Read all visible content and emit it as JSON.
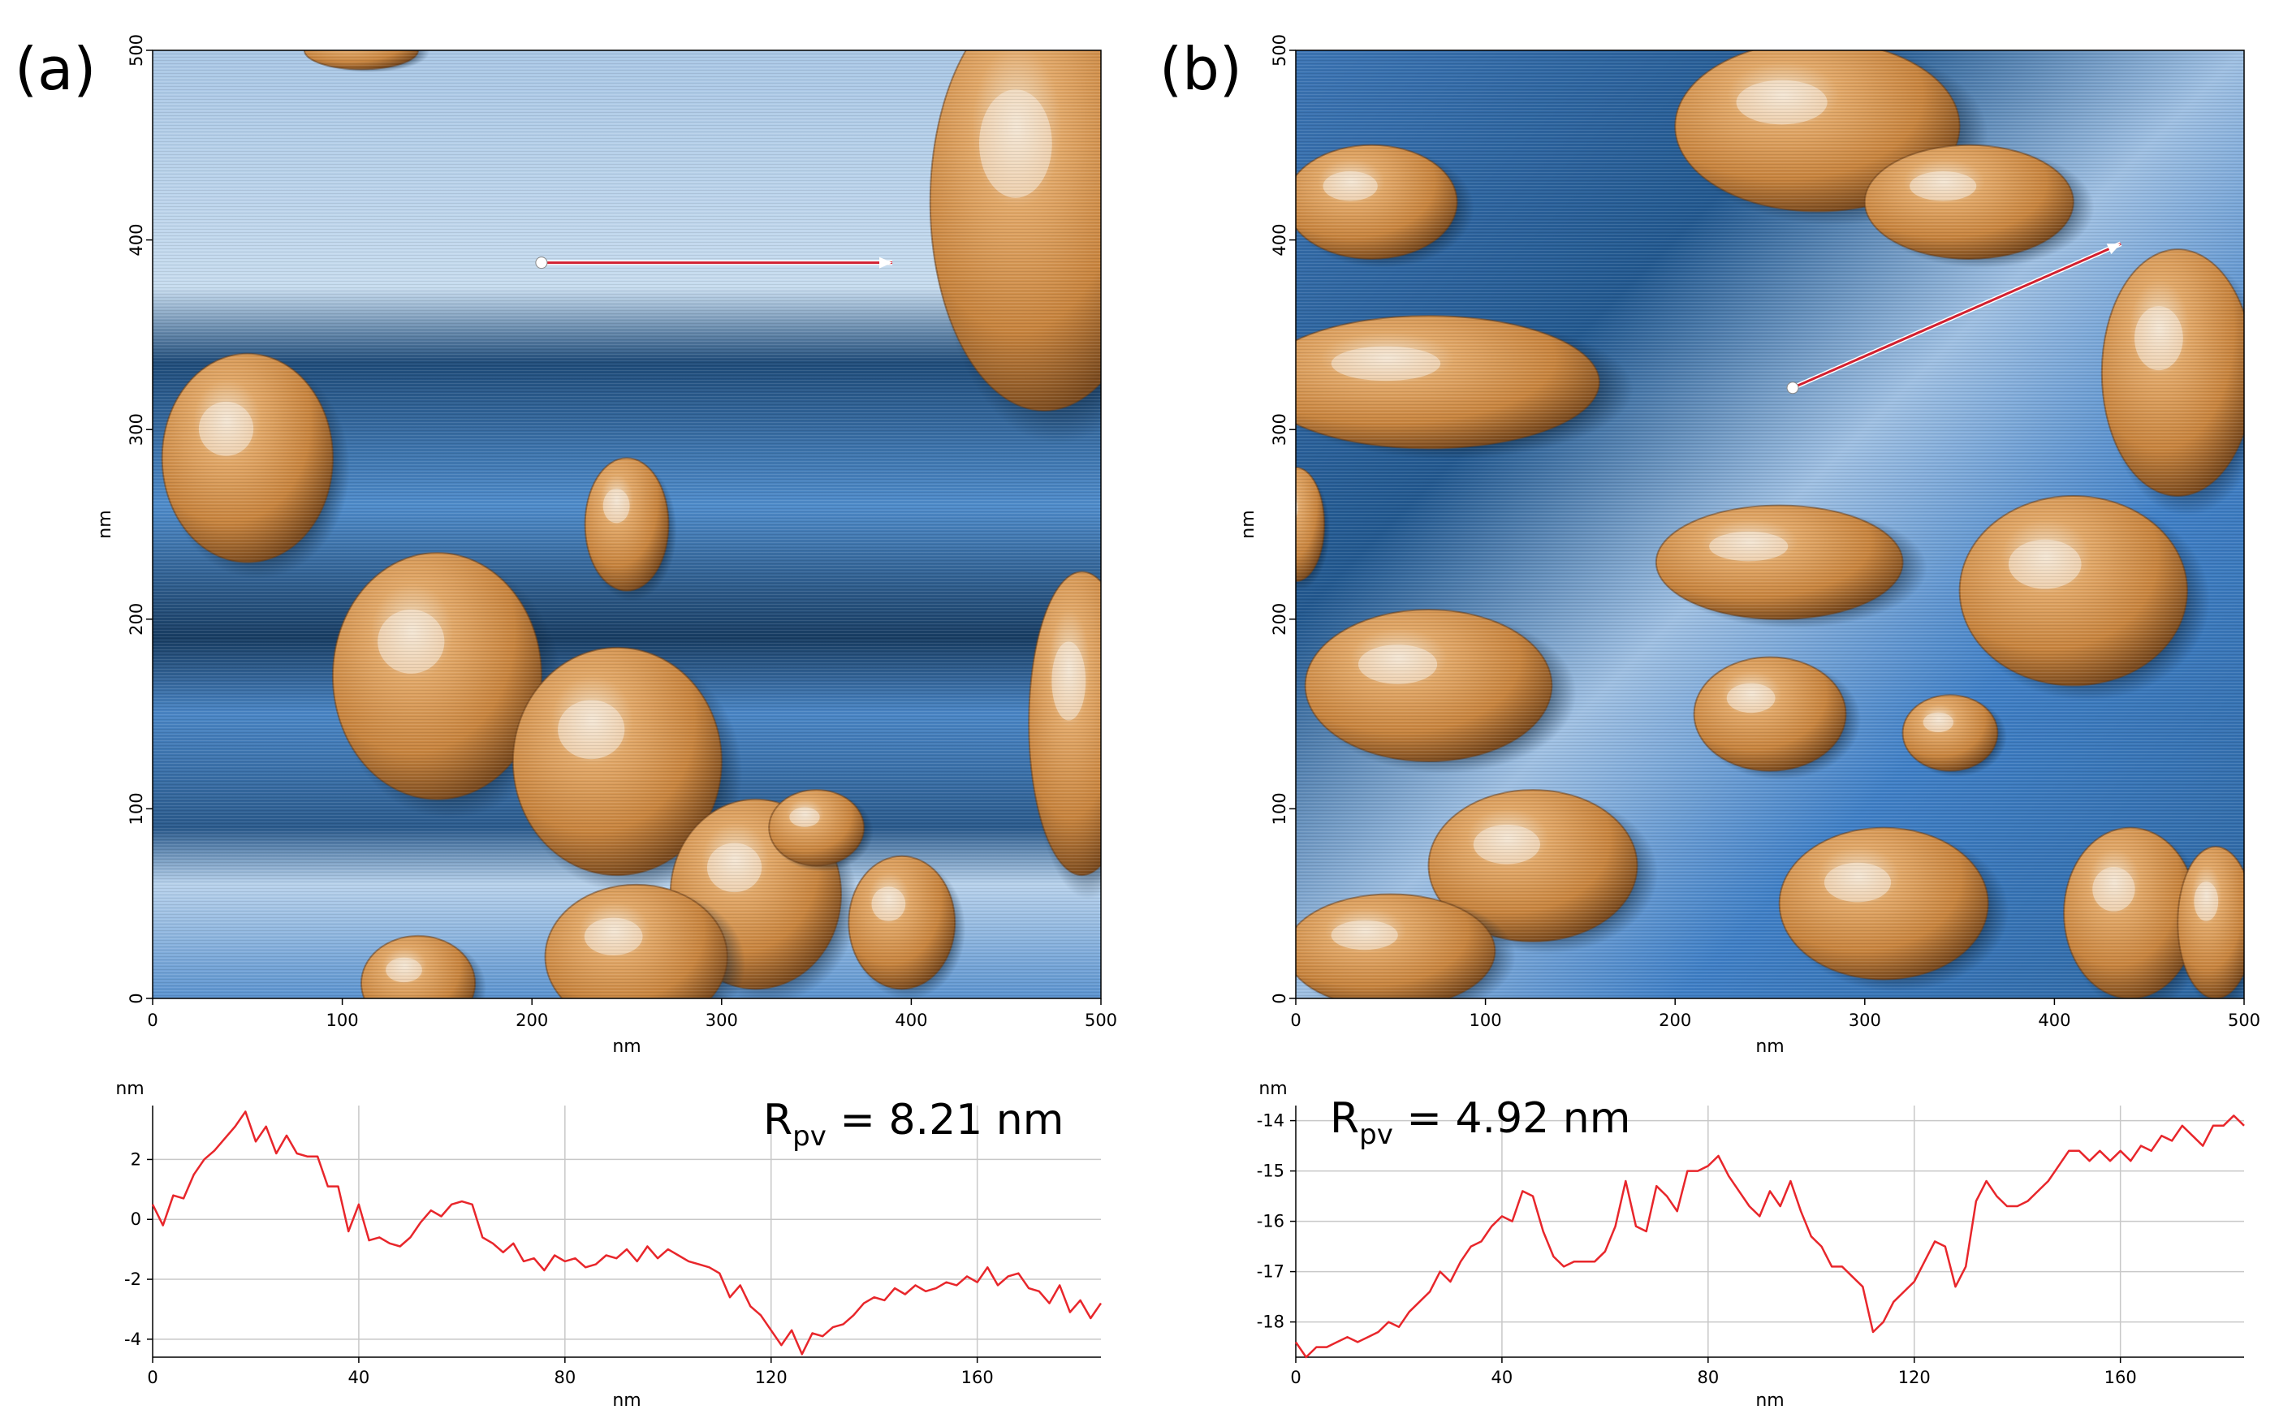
{
  "chart_data": [
    {
      "type": "heatmap",
      "panel_label": "(a)",
      "xlabel": "nm",
      "ylabel": "nm",
      "xlim": [
        0,
        500
      ],
      "ylim": [
        0,
        500
      ],
      "xticks": [
        0,
        100,
        200,
        300,
        400,
        500
      ],
      "yticks": [
        0,
        100,
        200,
        300,
        400,
        500
      ],
      "colors": {
        "substrate": "#3f7fc6",
        "grain": "#d48f45",
        "shadow": "#0d2236",
        "highlight": "#dce9f5"
      },
      "grains": [
        {
          "x": 50,
          "y": 285,
          "rx": 45,
          "ry": 55
        },
        {
          "x": 150,
          "y": 170,
          "rx": 55,
          "ry": 65
        },
        {
          "x": 245,
          "y": 125,
          "rx": 55,
          "ry": 60
        },
        {
          "x": 250,
          "y": 250,
          "rx": 22,
          "ry": 35
        },
        {
          "x": 318,
          "y": 55,
          "rx": 45,
          "ry": 50
        },
        {
          "x": 395,
          "y": 40,
          "rx": 28,
          "ry": 35
        },
        {
          "x": 255,
          "y": 22,
          "rx": 48,
          "ry": 38
        },
        {
          "x": 140,
          "y": 8,
          "rx": 30,
          "ry": 25
        },
        {
          "x": 470,
          "y": 420,
          "rx": 60,
          "ry": 110
        },
        {
          "x": 490,
          "y": 145,
          "rx": 28,
          "ry": 80
        },
        {
          "x": 350,
          "y": 90,
          "rx": 25,
          "ry": 20
        },
        {
          "x": 110,
          "y": 500,
          "rx": 30,
          "ry": 10
        }
      ],
      "line_profile": {
        "x1": 205,
        "y1": 388,
        "x2": 390,
        "y2": 388,
        "color": "#d22030"
      }
    },
    {
      "type": "heatmap",
      "panel_label": "(b)",
      "xlabel": "nm",
      "ylabel": "nm",
      "xlim": [
        0,
        500
      ],
      "ylim": [
        0,
        500
      ],
      "xticks": [
        0,
        100,
        200,
        300,
        400,
        500
      ],
      "yticks": [
        0,
        100,
        200,
        300,
        400,
        500
      ],
      "colors": {
        "substrate": "#3f7fc6",
        "grain": "#d48f45",
        "shadow": "#0d2236",
        "highlight": "#dce9f5"
      },
      "grains": [
        {
          "x": 275,
          "y": 460,
          "rx": 75,
          "ry": 45
        },
        {
          "x": 355,
          "y": 420,
          "rx": 55,
          "ry": 30
        },
        {
          "x": 465,
          "y": 330,
          "rx": 40,
          "ry": 65
        },
        {
          "x": 70,
          "y": 325,
          "rx": 90,
          "ry": 35
        },
        {
          "x": 40,
          "y": 420,
          "rx": 45,
          "ry": 30
        },
        {
          "x": 255,
          "y": 230,
          "rx": 65,
          "ry": 30
        },
        {
          "x": 410,
          "y": 215,
          "rx": 60,
          "ry": 50
        },
        {
          "x": 70,
          "y": 165,
          "rx": 65,
          "ry": 40
        },
        {
          "x": 250,
          "y": 150,
          "rx": 40,
          "ry": 30
        },
        {
          "x": 345,
          "y": 140,
          "rx": 25,
          "ry": 20
        },
        {
          "x": 125,
          "y": 70,
          "rx": 55,
          "ry": 40
        },
        {
          "x": 50,
          "y": 25,
          "rx": 55,
          "ry": 30
        },
        {
          "x": 310,
          "y": 50,
          "rx": 55,
          "ry": 40
        },
        {
          "x": 440,
          "y": 45,
          "rx": 35,
          "ry": 45
        },
        {
          "x": 0,
          "y": 250,
          "rx": 15,
          "ry": 30
        },
        {
          "x": 485,
          "y": 40,
          "rx": 20,
          "ry": 40
        }
      ],
      "line_profile": {
        "x1": 262,
        "y1": 322,
        "x2": 435,
        "y2": 398,
        "color": "#d22030"
      }
    },
    {
      "type": "line",
      "panel": "(a)",
      "ylabel": "nm",
      "xlabel": "nm",
      "xlim": [
        0,
        184
      ],
      "ylim": [
        -4.6,
        3.8
      ],
      "xticks": [
        0,
        40,
        80,
        120,
        160
      ],
      "yticks": [
        2,
        0,
        -2,
        -4
      ],
      "grid": true,
      "annotation": {
        "main": "R",
        "sub": "pv",
        "value": " = 8.21 nm"
      },
      "series": [
        {
          "color": "#e8262b",
          "x": [
            0,
            2,
            4,
            6,
            8,
            10,
            12,
            14,
            16,
            18,
            20,
            22,
            24,
            26,
            28,
            30,
            32,
            34,
            36,
            38,
            40,
            42,
            44,
            46,
            48,
            50,
            52,
            54,
            56,
            58,
            60,
            62,
            64,
            66,
            68,
            70,
            72,
            74,
            76,
            78,
            80,
            82,
            84,
            86,
            88,
            90,
            92,
            94,
            96,
            98,
            100,
            102,
            104,
            106,
            108,
            110,
            112,
            114,
            116,
            118,
            120,
            122,
            124,
            126,
            128,
            130,
            132,
            134,
            136,
            138,
            140,
            142,
            144,
            146,
            148,
            150,
            152,
            154,
            156,
            158,
            160,
            162,
            164,
            166,
            168,
            170,
            172,
            174,
            176,
            178,
            180,
            182,
            184
          ],
          "values": [
            0.5,
            -0.2,
            0.8,
            0.7,
            1.5,
            2.0,
            2.3,
            2.7,
            3.1,
            3.6,
            2.6,
            3.1,
            2.2,
            2.8,
            2.2,
            2.1,
            2.1,
            1.1,
            1.1,
            -0.4,
            0.5,
            -0.7,
            -0.6,
            -0.8,
            -0.9,
            -0.6,
            -0.1,
            0.3,
            0.1,
            0.5,
            0.6,
            0.5,
            -0.6,
            -0.8,
            -1.1,
            -0.8,
            -1.4,
            -1.3,
            -1.7,
            -1.2,
            -1.4,
            -1.3,
            -1.6,
            -1.5,
            -1.2,
            -1.3,
            -1.0,
            -1.4,
            -0.9,
            -1.3,
            -1.0,
            -1.2,
            -1.4,
            -1.5,
            -1.6,
            -1.8,
            -2.6,
            -2.2,
            -2.9,
            -3.2,
            -3.7,
            -4.2,
            -3.7,
            -4.5,
            -3.8,
            -3.9,
            -3.6,
            -3.5,
            -3.2,
            -2.8,
            -2.6,
            -2.7,
            -2.3,
            -2.5,
            -2.2,
            -2.4,
            -2.3,
            -2.1,
            -2.2,
            -1.9,
            -2.1,
            -1.6,
            -2.2,
            -1.9,
            -1.8,
            -2.3,
            -2.4,
            -2.8,
            -2.2,
            -3.1,
            -2.7,
            -3.3,
            -2.8
          ]
        }
      ]
    },
    {
      "type": "line",
      "panel": "(b)",
      "ylabel": "nm",
      "xlabel": "nm",
      "xlim": [
        0,
        184
      ],
      "ylim": [
        -18.7,
        -13.7
      ],
      "xticks": [
        0,
        40,
        80,
        120,
        160
      ],
      "yticks": [
        -14,
        -15,
        -16,
        -17,
        -18
      ],
      "grid": true,
      "annotation": {
        "main": "R",
        "sub": "pv",
        "value": " = 4.92 nm"
      },
      "series": [
        {
          "color": "#e8262b",
          "x": [
            0,
            2,
            4,
            6,
            8,
            10,
            12,
            14,
            16,
            18,
            20,
            22,
            24,
            26,
            28,
            30,
            32,
            34,
            36,
            38,
            40,
            42,
            44,
            46,
            48,
            50,
            52,
            54,
            56,
            58,
            60,
            62,
            64,
            66,
            68,
            70,
            72,
            74,
            76,
            78,
            80,
            82,
            84,
            86,
            88,
            90,
            92,
            94,
            96,
            98,
            100,
            102,
            104,
            106,
            108,
            110,
            112,
            114,
            116,
            118,
            120,
            122,
            124,
            126,
            128,
            130,
            132,
            134,
            136,
            138,
            140,
            142,
            144,
            146,
            148,
            150,
            152,
            154,
            156,
            158,
            160,
            162,
            164,
            166,
            168,
            170,
            172,
            174,
            176,
            178,
            180,
            182,
            184
          ],
          "values": [
            -18.4,
            -18.7,
            -18.5,
            -18.5,
            -18.4,
            -18.3,
            -18.4,
            -18.3,
            -18.2,
            -18.0,
            -18.1,
            -17.8,
            -17.6,
            -17.4,
            -17.0,
            -17.2,
            -16.8,
            -16.5,
            -16.4,
            -16.1,
            -15.9,
            -16.0,
            -15.4,
            -15.5,
            -16.2,
            -16.7,
            -16.9,
            -16.8,
            -16.8,
            -16.8,
            -16.6,
            -16.1,
            -15.2,
            -16.1,
            -16.2,
            -15.3,
            -15.5,
            -15.8,
            -15.0,
            -15.0,
            -14.9,
            -14.7,
            -15.1,
            -15.4,
            -15.7,
            -15.9,
            -15.4,
            -15.7,
            -15.2,
            -15.8,
            -16.3,
            -16.5,
            -16.9,
            -16.9,
            -17.1,
            -17.3,
            -18.2,
            -18.0,
            -17.6,
            -17.4,
            -17.2,
            -16.8,
            -16.4,
            -16.5,
            -17.3,
            -16.9,
            -15.6,
            -15.2,
            -15.5,
            -15.7,
            -15.7,
            -15.6,
            -15.4,
            -15.2,
            -14.9,
            -14.6,
            -14.6,
            -14.8,
            -14.6,
            -14.8,
            -14.6,
            -14.8,
            -14.5,
            -14.6,
            -14.3,
            -14.4,
            -14.1,
            -14.3,
            -14.5,
            -14.1,
            -14.1,
            -13.9,
            -14.1
          ]
        }
      ]
    }
  ]
}
